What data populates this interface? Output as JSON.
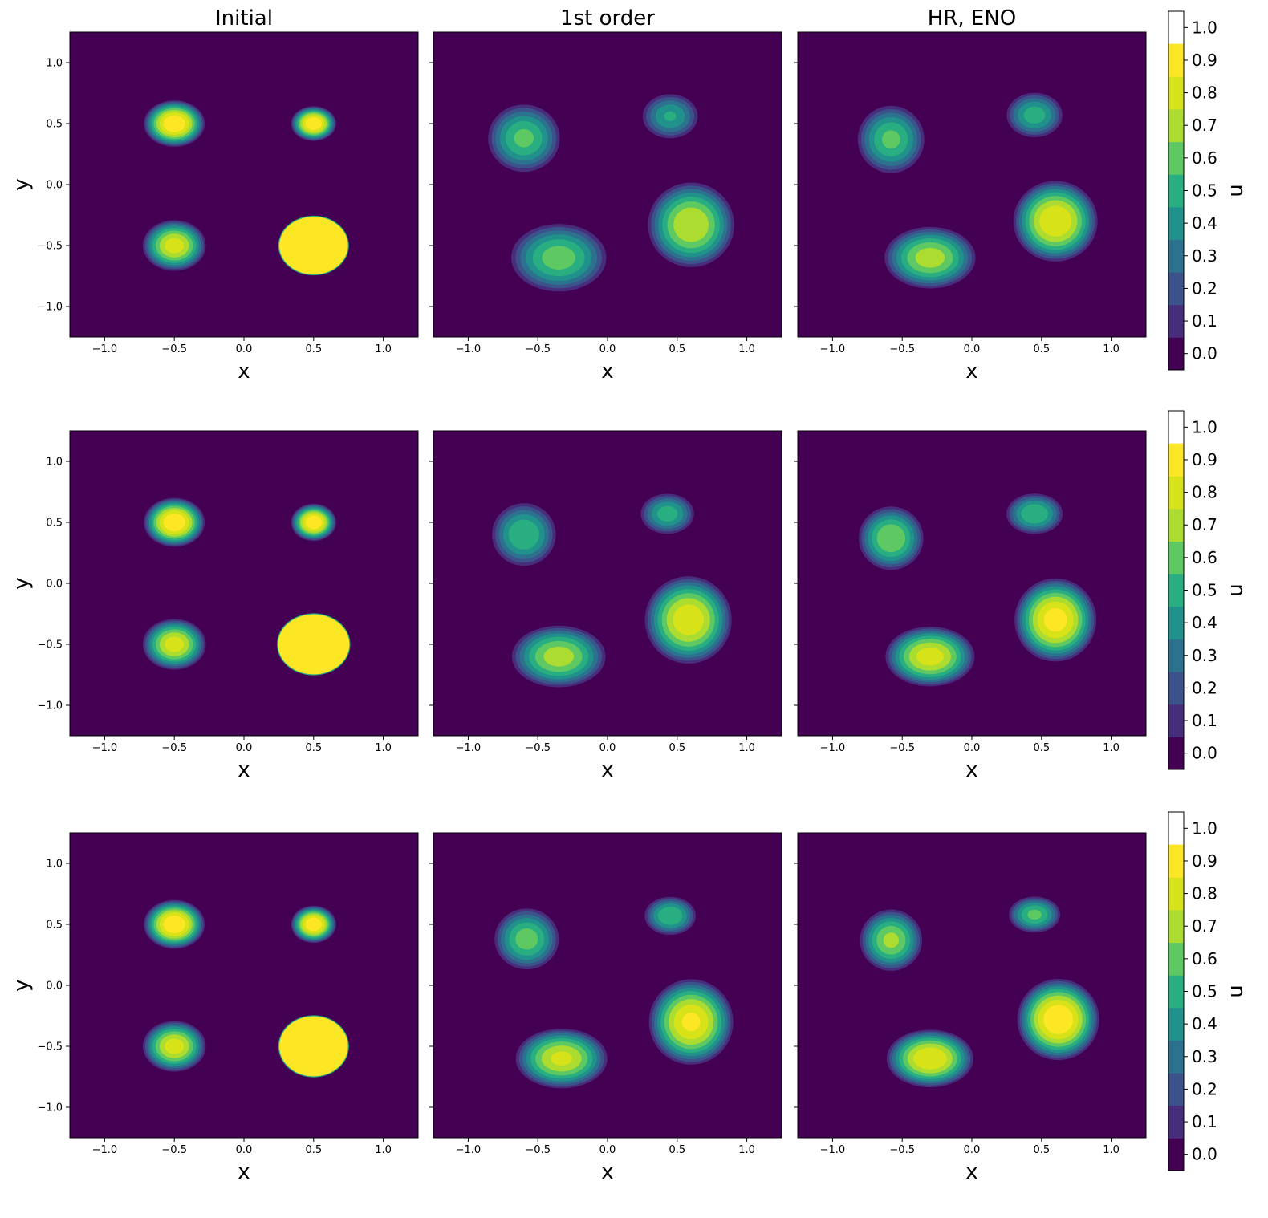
{
  "figure": {
    "column_titles": [
      "Initial",
      "1st order",
      "HR, ENO"
    ],
    "xlabel": "x",
    "ylabel": "y",
    "colorbar_label": "u"
  },
  "axes": {
    "x_ticks": [
      -1.0,
      -0.5,
      0.0,
      0.5,
      1.0
    ],
    "y_ticks": [
      -1.0,
      -0.5,
      0.0,
      0.5,
      1.0
    ],
    "xlim": [
      -1.25,
      1.25
    ],
    "ylim": [
      -1.25,
      1.25
    ],
    "colorbar_ticks": [
      0.0,
      0.1,
      0.2,
      0.3,
      0.4,
      0.5,
      0.6,
      0.7,
      0.8,
      0.9,
      1.0
    ],
    "colorbar_range": [
      -0.05,
      1.05
    ]
  },
  "colormap": [
    "#440154",
    "#472d7b",
    "#3b528b",
    "#2c728e",
    "#21918c",
    "#28ae80",
    "#5ec962",
    "#addc30",
    "#d8e219",
    "#fde725"
  ],
  "chart_data": [
    {
      "type": "heatmap",
      "row": 0,
      "col": 0,
      "title": "Initial",
      "xlabel": "x",
      "ylabel": "y",
      "blobs": [
        {
          "x": -0.5,
          "y": 0.5,
          "rx": 0.23,
          "ry": 0.2,
          "peak": 1.0
        },
        {
          "x": 0.5,
          "y": 0.5,
          "rx": 0.17,
          "ry": 0.15,
          "peak": 1.0
        },
        {
          "x": -0.5,
          "y": -0.5,
          "rx": 0.24,
          "ry": 0.22,
          "peak": 0.85
        },
        {
          "x": 0.5,
          "y": -0.5,
          "rx": 0.25,
          "ry": 0.24,
          "peak": 1.0,
          "flat": true
        }
      ]
    },
    {
      "type": "heatmap",
      "row": 0,
      "col": 1,
      "title": "1st order",
      "xlabel": "x",
      "ylabel": "",
      "blobs": [
        {
          "x": -0.6,
          "y": 0.38,
          "rx": 0.28,
          "ry": 0.3,
          "peak": 0.62
        },
        {
          "x": 0.45,
          "y": 0.56,
          "rx": 0.22,
          "ry": 0.2,
          "peak": 0.5
        },
        {
          "x": -0.35,
          "y": -0.6,
          "rx": 0.37,
          "ry": 0.3,
          "peak": 0.65
        },
        {
          "x": 0.6,
          "y": -0.33,
          "rx": 0.33,
          "ry": 0.37,
          "peak": 0.8
        }
      ]
    },
    {
      "type": "heatmap",
      "row": 0,
      "col": 2,
      "title": "HR, ENO",
      "xlabel": "x",
      "ylabel": "",
      "blobs": [
        {
          "x": -0.58,
          "y": 0.37,
          "rx": 0.26,
          "ry": 0.3,
          "peak": 0.62
        },
        {
          "x": 0.45,
          "y": 0.57,
          "rx": 0.22,
          "ry": 0.2,
          "peak": 0.55
        },
        {
          "x": -0.3,
          "y": -0.6,
          "rx": 0.35,
          "ry": 0.27,
          "peak": 0.75
        },
        {
          "x": 0.6,
          "y": -0.3,
          "rx": 0.32,
          "ry": 0.35,
          "peak": 0.9
        }
      ]
    },
    {
      "type": "heatmap",
      "row": 1,
      "col": 0,
      "title": "",
      "xlabel": "x",
      "ylabel": "y",
      "blobs": [
        {
          "x": -0.5,
          "y": 0.5,
          "rx": 0.23,
          "ry": 0.21,
          "peak": 1.0
        },
        {
          "x": 0.5,
          "y": 0.5,
          "rx": 0.17,
          "ry": 0.16,
          "peak": 1.0
        },
        {
          "x": -0.5,
          "y": -0.5,
          "rx": 0.24,
          "ry": 0.22,
          "peak": 0.85
        },
        {
          "x": 0.5,
          "y": -0.5,
          "rx": 0.26,
          "ry": 0.25,
          "peak": 1.0,
          "flat": true
        }
      ]
    },
    {
      "type": "heatmap",
      "row": 1,
      "col": 1,
      "title": "",
      "xlabel": "x",
      "ylabel": "",
      "blobs": [
        {
          "x": -0.6,
          "y": 0.4,
          "rx": 0.25,
          "ry": 0.28,
          "peak": 0.6
        },
        {
          "x": 0.43,
          "y": 0.57,
          "rx": 0.21,
          "ry": 0.18,
          "peak": 0.55
        },
        {
          "x": -0.35,
          "y": -0.6,
          "rx": 0.36,
          "ry": 0.27,
          "peak": 0.75
        },
        {
          "x": 0.58,
          "y": -0.3,
          "rx": 0.33,
          "ry": 0.38,
          "peak": 0.88
        }
      ]
    },
    {
      "type": "heatmap",
      "row": 1,
      "col": 2,
      "title": "",
      "xlabel": "x",
      "ylabel": "",
      "blobs": [
        {
          "x": -0.58,
          "y": 0.37,
          "rx": 0.25,
          "ry": 0.28,
          "peak": 0.7
        },
        {
          "x": 0.45,
          "y": 0.57,
          "rx": 0.22,
          "ry": 0.18,
          "peak": 0.6
        },
        {
          "x": -0.3,
          "y": -0.6,
          "rx": 0.34,
          "ry": 0.26,
          "peak": 0.85
        },
        {
          "x": 0.6,
          "y": -0.3,
          "rx": 0.31,
          "ry": 0.36,
          "peak": 0.95
        }
      ]
    },
    {
      "type": "heatmap",
      "row": 2,
      "col": 0,
      "title": "",
      "xlabel": "x",
      "ylabel": "y",
      "blobs": [
        {
          "x": -0.5,
          "y": 0.5,
          "rx": 0.23,
          "ry": 0.21,
          "peak": 1.0
        },
        {
          "x": 0.5,
          "y": 0.5,
          "rx": 0.17,
          "ry": 0.16,
          "peak": 1.0
        },
        {
          "x": -0.5,
          "y": -0.5,
          "rx": 0.24,
          "ry": 0.22,
          "peak": 0.85
        },
        {
          "x": 0.5,
          "y": -0.5,
          "rx": 0.25,
          "ry": 0.25,
          "peak": 1.0,
          "flat": true
        }
      ]
    },
    {
      "type": "heatmap",
      "row": 2,
      "col": 1,
      "title": "",
      "xlabel": "x",
      "ylabel": "",
      "blobs": [
        {
          "x": -0.58,
          "y": 0.38,
          "rx": 0.25,
          "ry": 0.27,
          "peak": 0.65
        },
        {
          "x": 0.45,
          "y": 0.57,
          "rx": 0.2,
          "ry": 0.17,
          "peak": 0.6
        },
        {
          "x": -0.33,
          "y": -0.6,
          "rx": 0.35,
          "ry": 0.26,
          "peak": 0.82
        },
        {
          "x": 0.6,
          "y": -0.3,
          "rx": 0.32,
          "ry": 0.37,
          "peak": 0.92
        }
      ]
    },
    {
      "type": "heatmap",
      "row": 2,
      "col": 2,
      "title": "",
      "xlabel": "x",
      "ylabel": "",
      "blobs": [
        {
          "x": -0.58,
          "y": 0.37,
          "rx": 0.24,
          "ry": 0.27,
          "peak": 0.72
        },
        {
          "x": 0.45,
          "y": 0.58,
          "rx": 0.2,
          "ry": 0.16,
          "peak": 0.62
        },
        {
          "x": -0.3,
          "y": -0.6,
          "rx": 0.33,
          "ry": 0.25,
          "peak": 0.9
        },
        {
          "x": 0.62,
          "y": -0.28,
          "rx": 0.31,
          "ry": 0.35,
          "peak": 1.0
        }
      ]
    }
  ]
}
